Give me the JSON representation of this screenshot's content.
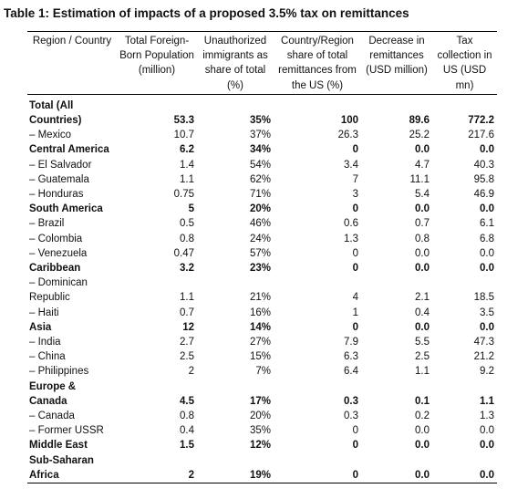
{
  "title": "Table 1: Estimation of impacts of a proposed 3.5% tax on remittances",
  "table": {
    "columns": [
      "Region / Country",
      "Total Foreign-Born Population (million)",
      "Unauthorized immigrants as share of total (%)",
      "Country/Region share of total remittances from the US (%)",
      "Decrease in remittances (USD million)",
      "Tax collection in US (USD mn)"
    ],
    "rows": [
      {
        "bold": true,
        "cells": [
          "Total (All Countries)",
          "53.3",
          "35%",
          "100",
          "89.6",
          "772.2"
        ]
      },
      {
        "bold": false,
        "cells": [
          "– Mexico",
          "10.7",
          "37%",
          "26.3",
          "25.2",
          "217.6"
        ]
      },
      {
        "bold": true,
        "cells": [
          "Central America",
          "6.2",
          "34%",
          "0",
          "0.0",
          "0.0"
        ]
      },
      {
        "bold": false,
        "cells": [
          "– El Salvador",
          "1.4",
          "54%",
          "3.4",
          "4.7",
          "40.3"
        ]
      },
      {
        "bold": false,
        "cells": [
          "– Guatemala",
          "1.1",
          "62%",
          "7",
          "11.1",
          "95.8"
        ]
      },
      {
        "bold": false,
        "cells": [
          "– Honduras",
          "0.75",
          "71%",
          "3",
          "5.4",
          "46.9"
        ]
      },
      {
        "bold": true,
        "cells": [
          "South America",
          "5",
          "20%",
          "0",
          "0.0",
          "0.0"
        ]
      },
      {
        "bold": false,
        "cells": [
          "– Brazil",
          "0.5",
          "46%",
          "0.6",
          "0.7",
          "6.1"
        ]
      },
      {
        "bold": false,
        "cells": [
          "– Colombia",
          "0.8",
          "24%",
          "1.3",
          "0.8",
          "6.8"
        ]
      },
      {
        "bold": false,
        "cells": [
          "– Venezuela",
          "0.47",
          "57%",
          "0",
          "0.0",
          "0.0"
        ]
      },
      {
        "bold": true,
        "cells": [
          "Caribbean",
          "3.2",
          "23%",
          "0",
          "0.0",
          "0.0"
        ]
      },
      {
        "bold": false,
        "cells": [
          "– Dominican Republic",
          "1.1",
          "21%",
          "4",
          "2.1",
          "18.5"
        ]
      },
      {
        "bold": false,
        "cells": [
          "– Haiti",
          "0.7",
          "16%",
          "1",
          "0.4",
          "3.5"
        ]
      },
      {
        "bold": true,
        "cells": [
          "Asia",
          "12",
          "14%",
          "0",
          "0.0",
          "0.0"
        ]
      },
      {
        "bold": false,
        "cells": [
          "– India",
          "2.7",
          "27%",
          "7.9",
          "5.5",
          "47.3"
        ]
      },
      {
        "bold": false,
        "cells": [
          "– China",
          "2.5",
          "15%",
          "6.3",
          "2.5",
          "21.2"
        ]
      },
      {
        "bold": false,
        "cells": [
          "– Philippines",
          "2",
          "7%",
          "6.4",
          "1.1",
          "9.2"
        ]
      },
      {
        "bold": true,
        "cells": [
          "Europe & Canada",
          "4.5",
          "17%",
          "0.3",
          "0.1",
          "1.1"
        ]
      },
      {
        "bold": false,
        "cells": [
          "– Canada",
          "0.8",
          "20%",
          "0.3",
          "0.2",
          "1.3"
        ]
      },
      {
        "bold": false,
        "cells": [
          "– Former USSR",
          "0.4",
          "35%",
          "0",
          "0.0",
          "0.0"
        ]
      },
      {
        "bold": true,
        "cells": [
          "Middle East",
          "1.5",
          "12%",
          "0",
          "0.0",
          "0.0"
        ]
      },
      {
        "bold": true,
        "cells": [
          "Sub-Saharan Africa",
          "2",
          "19%",
          "0",
          "0.0",
          "0.0"
        ]
      }
    ]
  }
}
